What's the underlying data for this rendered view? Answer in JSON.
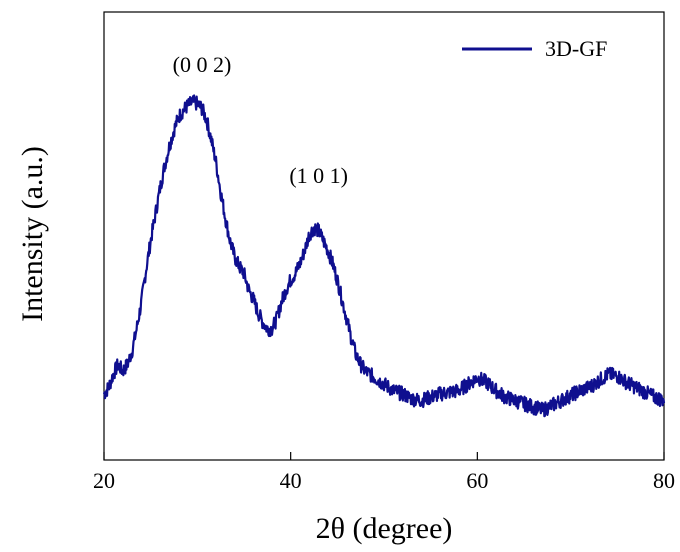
{
  "chart_data": {
    "type": "line",
    "xlabel": "2θ (degree)",
    "ylabel": "Intensity (a.u.)",
    "xlim": [
      20,
      80
    ],
    "ylim": [
      0,
      1
    ],
    "x_ticks": [
      "20",
      "40",
      "60",
      "80"
    ],
    "y_ticks_shown": false,
    "grid": false,
    "legend_position": "top-right",
    "series": [
      {
        "name": "3D-GF",
        "color": "#0f0f8f",
        "x": [
          20.0,
          20.5,
          21.0,
          21.5,
          22.0,
          22.5,
          23.0,
          23.5,
          24.0,
          24.5,
          25.0,
          25.5,
          26.0,
          26.5,
          27.0,
          27.5,
          28.0,
          28.5,
          29.0,
          29.5,
          30.0,
          30.5,
          31.0,
          31.5,
          32.0,
          32.5,
          33.0,
          33.5,
          34.0,
          34.5,
          35.0,
          35.5,
          36.0,
          36.5,
          37.0,
          37.5,
          38.0,
          38.5,
          39.0,
          39.5,
          40.0,
          40.5,
          41.0,
          41.5,
          42.0,
          42.5,
          43.0,
          43.5,
          44.0,
          44.5,
          45.0,
          45.5,
          46.0,
          46.5,
          47.0,
          47.5,
          48.0,
          49.0,
          50.0,
          51.0,
          52.0,
          53.0,
          54.0,
          55.0,
          56.0,
          57.0,
          58.0,
          59.0,
          60.0,
          61.0,
          62.0,
          63.0,
          64.0,
          65.0,
          66.0,
          67.0,
          68.0,
          69.0,
          70.0,
          71.0,
          72.0,
          73.0,
          74.0,
          75.0,
          76.0,
          77.0,
          78.0,
          79.0,
          80.0
        ],
        "values": [
          0.08,
          0.1,
          0.14,
          0.17,
          0.15,
          0.17,
          0.21,
          0.28,
          0.36,
          0.46,
          0.55,
          0.63,
          0.71,
          0.78,
          0.84,
          0.89,
          0.93,
          0.95,
          0.965,
          0.975,
          0.97,
          0.955,
          0.92,
          0.86,
          0.79,
          0.7,
          0.62,
          0.55,
          0.5,
          0.47,
          0.45,
          0.4,
          0.37,
          0.33,
          0.3,
          0.28,
          0.28,
          0.31,
          0.36,
          0.4,
          0.43,
          0.45,
          0.48,
          0.52,
          0.57,
          0.59,
          0.58,
          0.55,
          0.52,
          0.48,
          0.43,
          0.37,
          0.31,
          0.25,
          0.2,
          0.17,
          0.15,
          0.13,
          0.11,
          0.09,
          0.08,
          0.065,
          0.06,
          0.07,
          0.08,
          0.085,
          0.09,
          0.11,
          0.13,
          0.115,
          0.09,
          0.07,
          0.06,
          0.05,
          0.04,
          0.03,
          0.045,
          0.06,
          0.075,
          0.09,
          0.1,
          0.12,
          0.14,
          0.135,
          0.115,
          0.1,
          0.085,
          0.07,
          0.06
        ]
      }
    ],
    "annotations": [
      {
        "text": "(0 0 2)",
        "x": 30.5,
        "y": 1.0
      },
      {
        "text": "(1 0 1)",
        "x": 43.0,
        "y": 0.66
      }
    ]
  }
}
